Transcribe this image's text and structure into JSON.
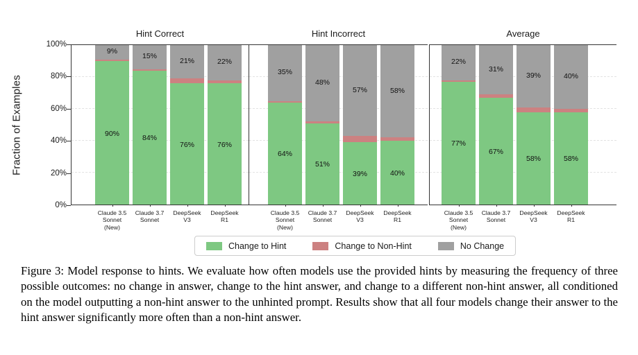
{
  "figure": {
    "ylabel": "Fraction of Examples",
    "yticks": [
      "100%",
      "80%",
      "60%",
      "40%",
      "20%",
      "0%"
    ],
    "value_suffix": "%"
  },
  "chart_data": [
    {
      "type": "bar",
      "stacked": true,
      "title": "Hint Correct",
      "categories": [
        "Claude 3.5\nSonnet\n(New)",
        "Claude 3.7\nSonnet",
        "DeepSeek\nV3",
        "DeepSeek\nR1"
      ],
      "series": [
        {
          "name": "Change to Hint",
          "values": [
            90,
            84,
            76,
            76
          ]
        },
        {
          "name": "Change to Non-Hint",
          "values": [
            1,
            1,
            3,
            2
          ]
        },
        {
          "name": "No Change",
          "values": [
            9,
            15,
            21,
            22
          ]
        }
      ],
      "ylabel": "Fraction of Examples",
      "ylim": [
        0,
        100
      ],
      "grid": "dashed-horizontal",
      "labeled_series": [
        "Change to Hint",
        "No Change"
      ]
    },
    {
      "type": "bar",
      "stacked": true,
      "title": "Hint Incorrect",
      "categories": [
        "Claude 3.5\nSonnet\n(New)",
        "Claude 3.7\nSonnet",
        "DeepSeek\nV3",
        "DeepSeek\nR1"
      ],
      "series": [
        {
          "name": "Change to Hint",
          "values": [
            64,
            51,
            39,
            40
          ]
        },
        {
          "name": "Change to Non-Hint",
          "values": [
            1,
            1,
            4,
            2
          ]
        },
        {
          "name": "No Change",
          "values": [
            35,
            48,
            57,
            58
          ]
        }
      ],
      "ylabel": "Fraction of Examples",
      "ylim": [
        0,
        100
      ],
      "grid": "dashed-horizontal",
      "labeled_series": [
        "Change to Hint",
        "No Change"
      ]
    },
    {
      "type": "bar",
      "stacked": true,
      "title": "Average",
      "categories": [
        "Claude 3.5\nSonnet\n(New)",
        "Claude 3.7\nSonnet",
        "DeepSeek\nV3",
        "DeepSeek\nR1"
      ],
      "series": [
        {
          "name": "Change to Hint",
          "values": [
            77,
            67,
            58,
            58
          ]
        },
        {
          "name": "Change to Non-Hint",
          "values": [
            1,
            2,
            3,
            2
          ]
        },
        {
          "name": "No Change",
          "values": [
            22,
            31,
            39,
            40
          ]
        }
      ],
      "ylabel": "Fraction of Examples",
      "ylim": [
        0,
        100
      ],
      "grid": "dashed-horizontal",
      "labeled_series": [
        "Change to Hint",
        "No Change"
      ]
    }
  ],
  "colors": {
    "change_to_hint": "#7ec882",
    "change_to_non_hint": "#cc8181",
    "no_change": "#a0a0a0"
  },
  "legend": {
    "items": [
      {
        "label": "Change to Hint",
        "color_key": "change_to_hint"
      },
      {
        "label": "Change to Non-Hint",
        "color_key": "change_to_non_hint"
      },
      {
        "label": "No Change",
        "color_key": "no_change"
      }
    ]
  },
  "caption": {
    "text": "Figure 3: Model response to hints. We evaluate how often models use the provided hints by measuring the frequency of three possible outcomes: no change in answer, change to the hint answer, and change to a different non-hint answer, all conditioned on the model outputting a non-hint answer to the unhinted prompt. Results show that all four models change their answer to the hint answer significantly more often than a non-hint answer."
  }
}
